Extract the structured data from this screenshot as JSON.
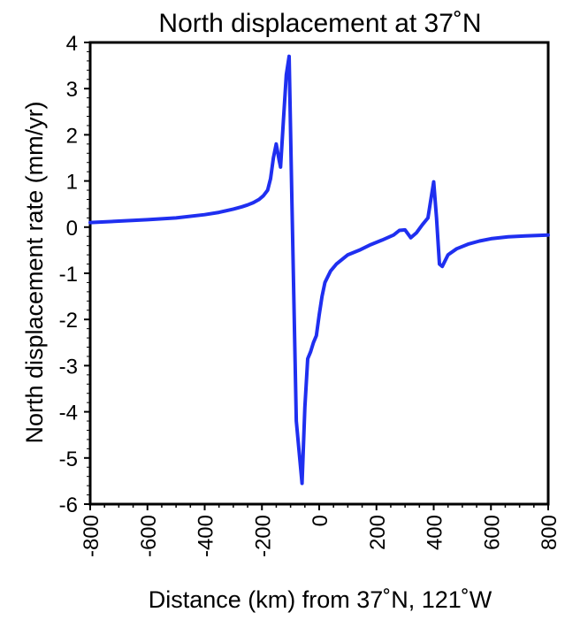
{
  "chart_data": {
    "type": "line",
    "title": "North displacement at 37˚N",
    "xlabel": "Distance (km) from 37˚N, 121˚W",
    "ylabel": "North displacement rate (mm/yr)",
    "xlim": [
      -800,
      800
    ],
    "ylim": [
      -6,
      4
    ],
    "xticks": [
      -800,
      -600,
      -400,
      -200,
      0,
      200,
      400,
      600,
      800
    ],
    "xtick_labels": [
      "-800",
      "-600",
      "-400",
      "-200",
      "0",
      "200",
      "400",
      "600",
      "800"
    ],
    "yticks": [
      4,
      3,
      2,
      1,
      0,
      -1,
      -2,
      -3,
      -4,
      -5,
      -6
    ],
    "ytick_labels": [
      "4",
      "3",
      "2",
      "1",
      "0",
      "-1",
      "-2",
      "-3",
      "-4",
      "-5",
      "-6"
    ],
    "grid": false,
    "line_color": "#1f2ff0",
    "series": [
      {
        "x": [
          -800,
          -700,
          -600,
          -500,
          -400,
          -350,
          -300,
          -270,
          -250,
          -230,
          -210,
          -195,
          -180,
          -170,
          -160,
          -150,
          -140,
          -135,
          -125,
          -115,
          -105,
          -95,
          -80,
          -60,
          -50,
          -40,
          -30,
          -20,
          -10,
          0,
          10,
          20,
          40,
          60,
          80,
          100,
          140,
          180,
          220,
          260,
          280,
          300,
          320,
          340,
          360,
          380,
          390,
          400,
          410,
          420,
          430,
          450,
          480,
          520,
          560,
          600,
          660,
          720,
          800
        ],
        "y": [
          0.1,
          0.13,
          0.16,
          0.2,
          0.27,
          0.32,
          0.39,
          0.44,
          0.48,
          0.53,
          0.6,
          0.68,
          0.8,
          1.05,
          1.5,
          1.8,
          1.45,
          1.3,
          2.3,
          3.3,
          3.7,
          0.5,
          -4.2,
          -5.55,
          -3.9,
          -2.85,
          -2.7,
          -2.5,
          -2.35,
          -1.9,
          -1.5,
          -1.2,
          -0.95,
          -0.8,
          -0.7,
          -0.6,
          -0.5,
          -0.38,
          -0.28,
          -0.17,
          -0.07,
          -0.06,
          -0.23,
          -0.12,
          0.05,
          0.2,
          0.6,
          0.98,
          0.2,
          -0.8,
          -0.85,
          -0.6,
          -0.47,
          -0.37,
          -0.3,
          -0.25,
          -0.21,
          -0.19,
          -0.17
        ]
      }
    ]
  }
}
